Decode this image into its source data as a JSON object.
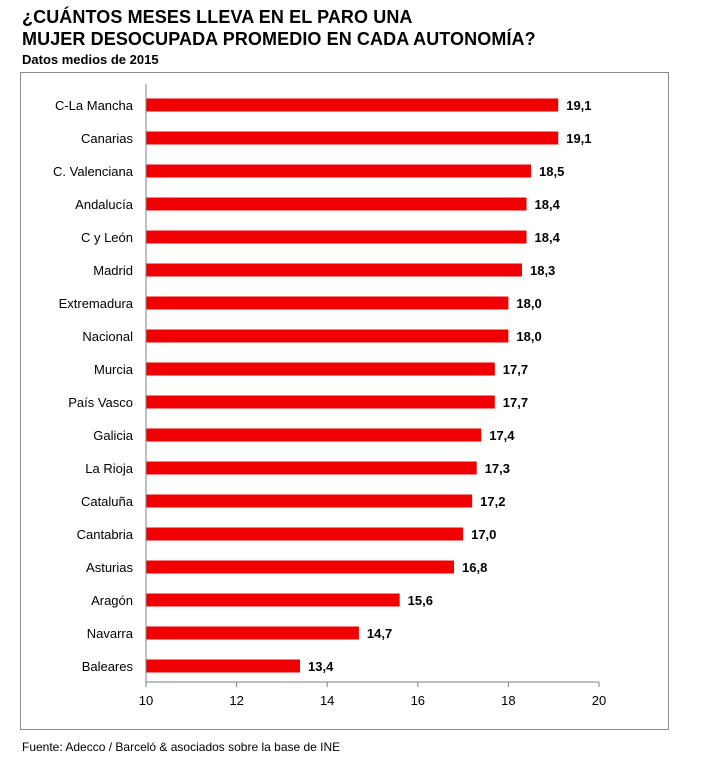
{
  "header": {
    "title_line1": "¿CUÁNTOS MESES LLEVA EN EL PARO UNA",
    "title_line2": "MUJER DESOCUPADA PROMEDIO EN CADA AUTONOMÍA?",
    "subtitle": "Datos medios de 2015"
  },
  "footer": {
    "source": "Fuente: Adecco / Barceló & asociados sobre la base de INE"
  },
  "colors": {
    "bar": "#f00000",
    "axis": "#808080"
  },
  "chart_data": {
    "type": "bar",
    "orientation": "horizontal",
    "title": "¿CUÁNTOS MESES LLEVA EN EL PARO UNA MUJER DESOCUPADA PROMEDIO EN CADA AUTONOMÍA?",
    "subtitle": "Datos medios de 2015",
    "categories": [
      "C-La Mancha",
      "Canarias",
      "C. Valenciana",
      "Andalucía",
      "C y León",
      "Madrid",
      "Extremadura",
      "Nacional",
      "Murcia",
      "País Vasco",
      "Galicia",
      "La Rioja",
      "Cataluña",
      "Cantabria",
      "Asturias",
      "Aragón",
      "Navarra",
      "Baleares"
    ],
    "values": [
      19.1,
      19.1,
      18.5,
      18.4,
      18.4,
      18.3,
      18.0,
      18.0,
      17.7,
      17.7,
      17.4,
      17.3,
      17.2,
      17.0,
      16.8,
      15.6,
      14.7,
      13.4
    ],
    "value_labels": [
      "19,1",
      "19,1",
      "18,5",
      "18,4",
      "18,4",
      "18,3",
      "18,0",
      "18,0",
      "17,7",
      "17,7",
      "17,4",
      "17,3",
      "17,2",
      "17,0",
      "16,8",
      "15,6",
      "14,7",
      "13,4"
    ],
    "xlim": [
      10,
      20
    ],
    "xticks": [
      10,
      12,
      14,
      16,
      18,
      20
    ],
    "xlabel": "",
    "ylabel": "",
    "grid": false,
    "legend": "none"
  }
}
